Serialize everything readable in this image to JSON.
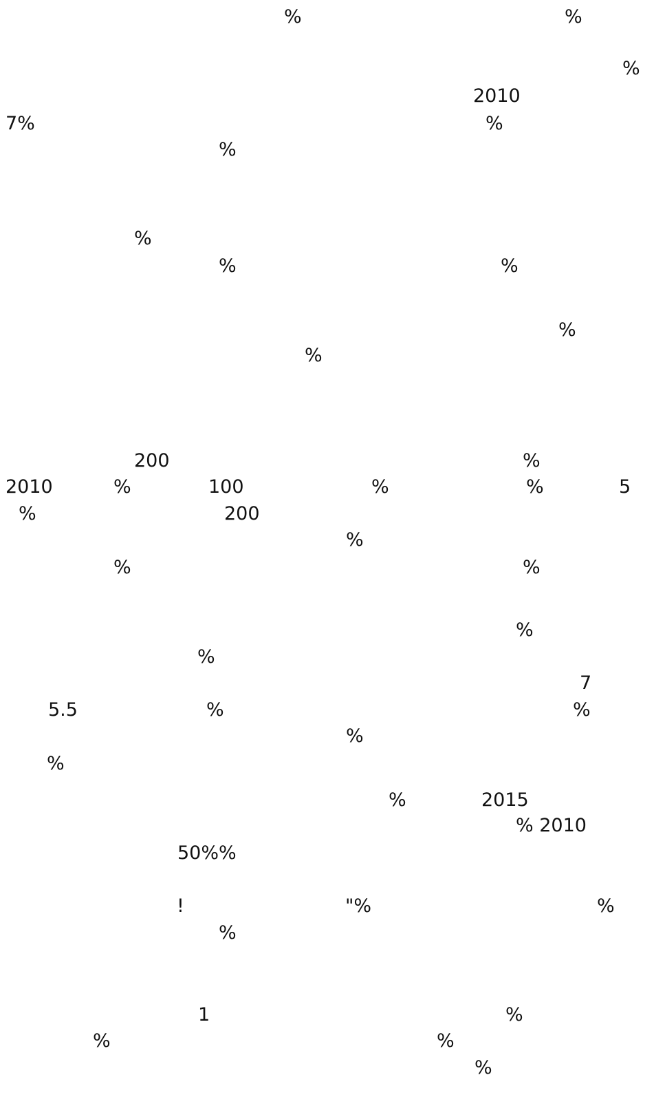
{
  "fragments": [
    "%",
    "%",
    "%",
    "2010",
    "7%",
    "%",
    "%",
    "%",
    "%",
    "%",
    "%",
    "%",
    "200",
    "%",
    "2010",
    "%",
    "100",
    "%",
    "%",
    "5",
    "%",
    "200",
    "%",
    "%",
    "%",
    "%",
    "%",
    "7",
    "5.5",
    "%",
    "%",
    "%",
    "%",
    "%",
    "2015",
    "% 2010",
    "50%%",
    "!",
    "\"%",
    "%",
    "%",
    "1",
    "%",
    "%",
    "%",
    "%"
  ]
}
